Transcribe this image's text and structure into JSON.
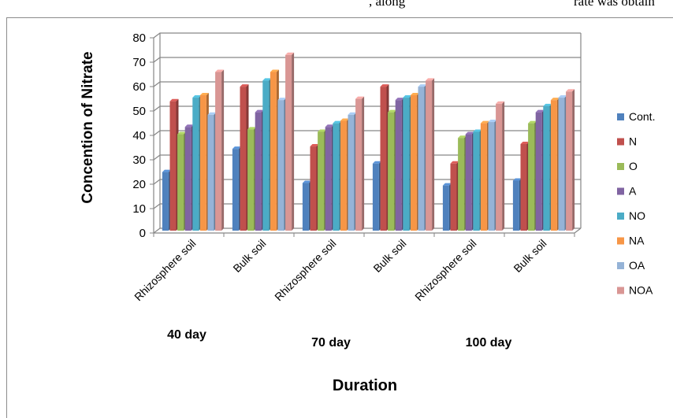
{
  "top_text": {
    "left": ", along",
    "right": "rate was obtain"
  },
  "chart_data": {
    "type": "bar",
    "title": "",
    "xlabel": "Duration",
    "ylabel": "Concention of Nitrate",
    "ylim": [
      0,
      80
    ],
    "yticks": [
      0,
      10,
      20,
      30,
      40,
      50,
      60,
      70,
      80
    ],
    "grid": true,
    "legend_position": "right",
    "categories": [
      "Rhizosphere soil",
      "Bulk soil",
      "Rhizosphere soil",
      "Bulk soil",
      "Rhizosphere soil",
      "Bulk soil"
    ],
    "groups": [
      {
        "label": "40 day",
        "categories": [
          0,
          1
        ]
      },
      {
        "label": "70 day",
        "categories": [
          2,
          3
        ]
      },
      {
        "label": "100 day",
        "categories": [
          4,
          5
        ]
      }
    ],
    "series": [
      {
        "name": "Cont.",
        "color": "#4f81bd",
        "values": [
          24,
          33.5,
          19.5,
          27.5,
          18.5,
          20.5
        ]
      },
      {
        "name": "N",
        "color": "#c0504d",
        "values": [
          53,
          59,
          34.5,
          59,
          27.5,
          35.5
        ]
      },
      {
        "name": "O",
        "color": "#9bbb59",
        "values": [
          39.5,
          41.5,
          40.5,
          48.5,
          38,
          44
        ]
      },
      {
        "name": "A",
        "color": "#8064a2",
        "values": [
          42.5,
          48.5,
          42.5,
          53.5,
          39.5,
          48.5
        ]
      },
      {
        "name": "NO",
        "color": "#4bacc6",
        "values": [
          54.5,
          61.5,
          44,
          54.5,
          40.5,
          51
        ]
      },
      {
        "name": "NA",
        "color": "#f79646",
        "values": [
          55.5,
          65,
          45,
          55.5,
          44,
          53.5
        ]
      },
      {
        "name": "OA",
        "color": "#95b3d7",
        "values": [
          47.5,
          53.5,
          47.5,
          59,
          44.5,
          54.5
        ]
      },
      {
        "name": "NOA",
        "color": "#d99694",
        "values": [
          65,
          72,
          54,
          61.5,
          52,
          57
        ]
      }
    ]
  }
}
